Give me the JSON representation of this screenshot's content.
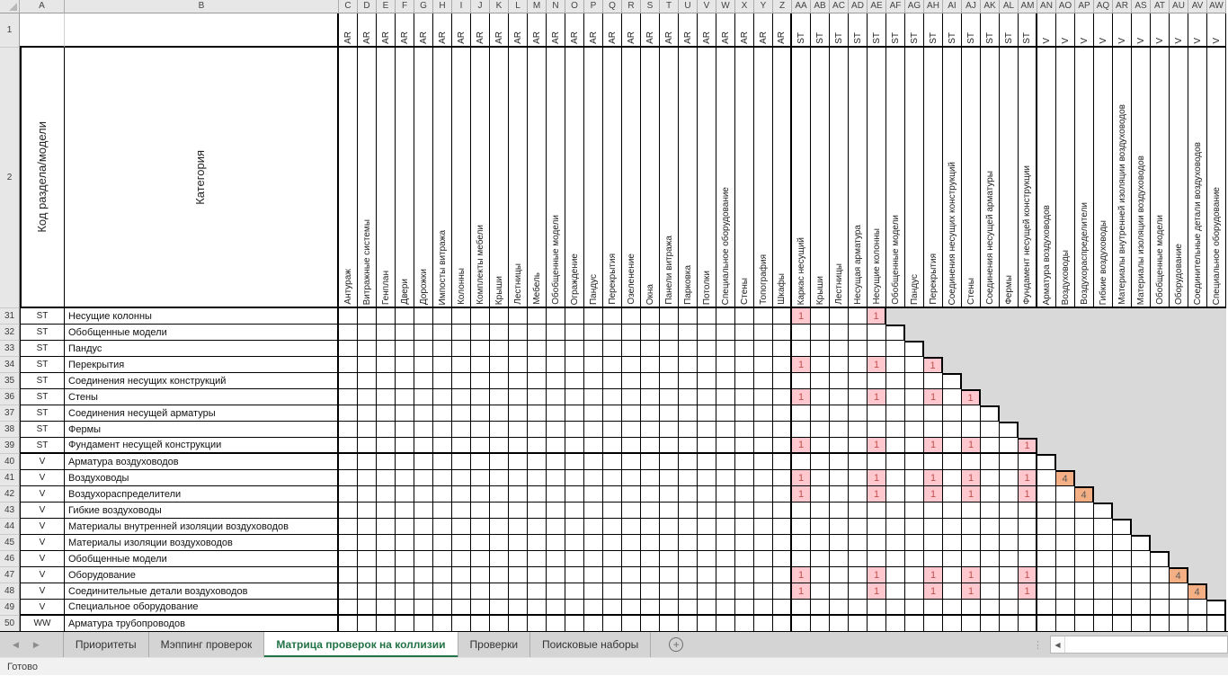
{
  "app": {
    "status_text": "Готово"
  },
  "icons": {
    "tab_scroll_left": "◀",
    "tab_scroll_right": "▶",
    "add_sheet": "+",
    "splitter_dots": "⋮",
    "scroll_left_arrow": "◀"
  },
  "colors": {
    "accent_green": "#217346",
    "flag_cell_bg": "#FFC7CE",
    "flag_cell_text": "#C0504D",
    "diagonal_cell_bg": "#F4B084",
    "diagonal_cell_text": "#595959",
    "out_of_matrix_bg": "#D9D9D9",
    "header_bg": "#E7E7E7"
  },
  "sheet_tabs": {
    "items": [
      "Приоритеты",
      "Мэппинг проверок",
      "Матрица проверок на коллизии",
      "Проверки",
      "Поисковые наборы"
    ],
    "active_index": 2
  },
  "grid": {
    "fixed_cols": [
      {
        "letter": "A",
        "title": "Код раздела/модели"
      },
      {
        "letter": "B",
        "title": "Категория"
      }
    ],
    "frozen_row_numbers": [
      "1",
      "2"
    ],
    "columns": [
      {
        "letter": "C",
        "group": "AR",
        "label": "Антураж"
      },
      {
        "letter": "D",
        "group": "AR",
        "label": "Витражные системы"
      },
      {
        "letter": "E",
        "group": "AR",
        "label": "Генплан"
      },
      {
        "letter": "F",
        "group": "AR",
        "label": "Двери"
      },
      {
        "letter": "G",
        "group": "AR",
        "label": "Дорожки"
      },
      {
        "letter": "H",
        "group": "AR",
        "label": "Импосты витража"
      },
      {
        "letter": "I",
        "group": "AR",
        "label": "Колонны"
      },
      {
        "letter": "J",
        "group": "AR",
        "label": "Комплекты мебели"
      },
      {
        "letter": "K",
        "group": "AR",
        "label": "Крыши"
      },
      {
        "letter": "L",
        "group": "AR",
        "label": "Лестницы"
      },
      {
        "letter": "M",
        "group": "AR",
        "label": "Мебель"
      },
      {
        "letter": "N",
        "group": "AR",
        "label": "Обобщенные модели"
      },
      {
        "letter": "O",
        "group": "AR",
        "label": "Ограждение"
      },
      {
        "letter": "P",
        "group": "AR",
        "label": "Пандус"
      },
      {
        "letter": "Q",
        "group": "AR",
        "label": "Перекрытия"
      },
      {
        "letter": "R",
        "group": "AR",
        "label": "Озеленение"
      },
      {
        "letter": "S",
        "group": "AR",
        "label": "Окна"
      },
      {
        "letter": "T",
        "group": "AR",
        "label": "Панели витража"
      },
      {
        "letter": "U",
        "group": "AR",
        "label": "Парковка"
      },
      {
        "letter": "V",
        "group": "AR",
        "label": "Потолки"
      },
      {
        "letter": "W",
        "group": "AR",
        "label": "Специальное оборудование"
      },
      {
        "letter": "X",
        "group": "AR",
        "label": "Стены"
      },
      {
        "letter": "Y",
        "group": "AR",
        "label": "Топография"
      },
      {
        "letter": "Z",
        "group": "AR",
        "label": "Шкафы"
      },
      {
        "letter": "AA",
        "group": "ST",
        "label": "Каркас несущий"
      },
      {
        "letter": "AB",
        "group": "ST",
        "label": "Крыши"
      },
      {
        "letter": "AC",
        "group": "ST",
        "label": "Лестницы"
      },
      {
        "letter": "AD",
        "group": "ST",
        "label": "Несущая арматура"
      },
      {
        "letter": "AE",
        "group": "ST",
        "label": "Несущие колонны"
      },
      {
        "letter": "AF",
        "group": "ST",
        "label": "Обобщенные модели"
      },
      {
        "letter": "AG",
        "group": "ST",
        "label": "Пандус"
      },
      {
        "letter": "AH",
        "group": "ST",
        "label": "Перекрытия"
      },
      {
        "letter": "AI",
        "group": "ST",
        "label": "Соединения несущих конструкций"
      },
      {
        "letter": "AJ",
        "group": "ST",
        "label": "Стены"
      },
      {
        "letter": "AK",
        "group": "ST",
        "label": "Соединения несущей арматуры"
      },
      {
        "letter": "AL",
        "group": "ST",
        "label": "Фермы"
      },
      {
        "letter": "AM",
        "group": "ST",
        "label": "Фундамент несущей конструкции"
      },
      {
        "letter": "AN",
        "group": "V",
        "label": "Арматура воздуховодов"
      },
      {
        "letter": "AO",
        "group": "V",
        "label": "Воздуховоды"
      },
      {
        "letter": "AP",
        "group": "V",
        "label": "Воздухораспределители"
      },
      {
        "letter": "AQ",
        "group": "V",
        "label": "Гибкие воздуховоды"
      },
      {
        "letter": "AR",
        "group": "V",
        "label": "Материалы внутренней изоляции воздуховодов"
      },
      {
        "letter": "AS",
        "group": "V",
        "label": "Материалы изоляции воздуховодов"
      },
      {
        "letter": "AT",
        "group": "V",
        "label": "Обобщенные модели"
      },
      {
        "letter": "AU",
        "group": "V",
        "label": "Оборудование"
      },
      {
        "letter": "AV",
        "group": "V",
        "label": "Соединительные детали воздуховодов"
      },
      {
        "letter": "AW",
        "group": "V",
        "label": "Специальное оборудование"
      }
    ],
    "rows": [
      {
        "num": 31,
        "code": "ST",
        "category": "Несущие колонны",
        "values": {
          "AA": "1",
          "AE": "1"
        }
      },
      {
        "num": 32,
        "code": "ST",
        "category": "Обобщенные модели",
        "values": {}
      },
      {
        "num": 33,
        "code": "ST",
        "category": "Пандус",
        "values": {}
      },
      {
        "num": 34,
        "code": "ST",
        "category": "Перекрытия",
        "values": {
          "AA": "1",
          "AE": "1",
          "AH": "1"
        }
      },
      {
        "num": 35,
        "code": "ST",
        "category": "Соединения несущих конструкций",
        "values": {}
      },
      {
        "num": 36,
        "code": "ST",
        "category": "Стены",
        "values": {
          "AA": "1",
          "AE": "1",
          "AH": "1",
          "AJ": "1"
        }
      },
      {
        "num": 37,
        "code": "ST",
        "category": "Соединения несущей арматуры",
        "values": {}
      },
      {
        "num": 38,
        "code": "ST",
        "category": "Фермы",
        "values": {}
      },
      {
        "num": 39,
        "code": "ST",
        "category": "Фундамент несущей конструкции",
        "values": {
          "AA": "1",
          "AE": "1",
          "AH": "1",
          "AJ": "1",
          "AM": "1"
        }
      },
      {
        "num": 40,
        "code": "V",
        "category": "Арматура воздуховодов",
        "values": {}
      },
      {
        "num": 41,
        "code": "V",
        "category": "Воздуховоды",
        "values": {
          "AA": "1",
          "AE": "1",
          "AH": "1",
          "AJ": "1",
          "AM": "1",
          "AO": "4"
        }
      },
      {
        "num": 42,
        "code": "V",
        "category": "Воздухораспределители",
        "values": {
          "AA": "1",
          "AE": "1",
          "AH": "1",
          "AJ": "1",
          "AM": "1",
          "AP": "4"
        }
      },
      {
        "num": 43,
        "code": "V",
        "category": "Гибкие воздуховоды",
        "values": {}
      },
      {
        "num": 44,
        "code": "V",
        "category": "Материалы внутренней изоляции воздуховодов",
        "values": {}
      },
      {
        "num": 45,
        "code": "V",
        "category": "Материалы изоляции воздуховодов",
        "values": {}
      },
      {
        "num": 46,
        "code": "V",
        "category": "Обобщенные модели",
        "values": {}
      },
      {
        "num": 47,
        "code": "V",
        "category": "Оборудование",
        "values": {
          "AA": "1",
          "AE": "1",
          "AH": "1",
          "AJ": "1",
          "AM": "1",
          "AU": "4"
        }
      },
      {
        "num": 48,
        "code": "V",
        "category": "Соединительные детали воздуховодов",
        "values": {
          "AA": "1",
          "AE": "1",
          "AH": "1",
          "AJ": "1",
          "AM": "1",
          "AV": "4"
        }
      },
      {
        "num": 49,
        "code": "V",
        "category": "Специальное оборудование",
        "values": {}
      },
      {
        "num": 50,
        "code": "WW",
        "category": "Арматура трубопроводов",
        "values": {}
      }
    ]
  }
}
